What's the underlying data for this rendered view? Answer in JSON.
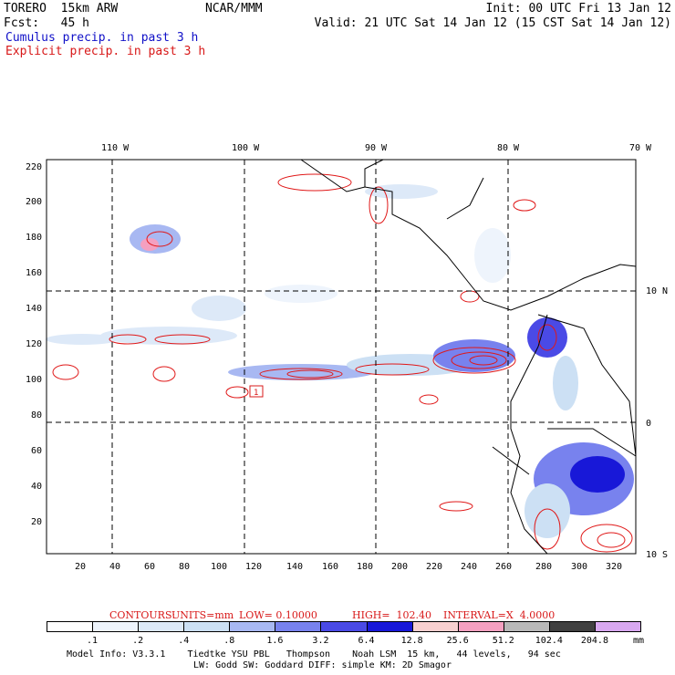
{
  "header": {
    "model": "TORERO  15km ARW",
    "org": "NCAR/MMM",
    "init": "Init: 00 UTC Fri 13 Jan 12",
    "fcst": "Fcst:   45 h",
    "valid": "Valid: 21 UTC Sat 14 Jan 12 (15 CST Sat 14 Jan 12)",
    "field1": "Cumulus precip. in past 3 h",
    "field2": "Explicit precip. in past 3 h"
  },
  "colors": {
    "blue_text": "#1010c8",
    "red_text": "#d81818"
  },
  "map": {
    "lon_labels": [
      "110 W",
      "100 W",
      "90 W",
      "80 W",
      "70 W"
    ],
    "lat_labels": [
      "10 N",
      "0",
      "10 S"
    ],
    "y_ticks": [
      "220",
      "200",
      "180",
      "160",
      "140",
      "120",
      "100",
      "80",
      "60",
      "40",
      "20"
    ],
    "x_ticks": [
      "20",
      "40",
      "60",
      "80",
      "100",
      "120",
      "140",
      "160",
      "180",
      "200",
      "220",
      "240",
      "260",
      "280",
      "300",
      "320"
    ],
    "low_marker": "1"
  },
  "contours": {
    "label": "CONTOURS:",
    "units": "UNITS=mm",
    "low": "LOW= 0.10000",
    "high": "HIGH=  102.40",
    "interval": "INTERVAL=X  4.0000"
  },
  "legend": {
    "colors": [
      "#ffffff",
      "#eef4fc",
      "#dde9f8",
      "#cce0f4",
      "#a8b8f2",
      "#7882ee",
      "#4a4ae6",
      "#1818d8",
      "#f8d0d0",
      "#f4a0c0",
      "#b8b8b8",
      "#404040",
      "#d8a8f0"
    ],
    "labels": [
      ".1",
      ".2",
      ".4",
      ".8",
      "1.6",
      "3.2",
      "6.4",
      "12.8",
      "25.6",
      "51.2",
      "102.4",
      "204.8"
    ],
    "unit": "mm"
  },
  "footer": {
    "line1": "Model Info: V3.3.1    Tiedtke YSU PBL   Thompson    Noah LSM  15 km,   44 levels,   94 sec",
    "line2": "LW: Godd SW: Goddard DIFF: simple KM: 2D Smagor"
  }
}
